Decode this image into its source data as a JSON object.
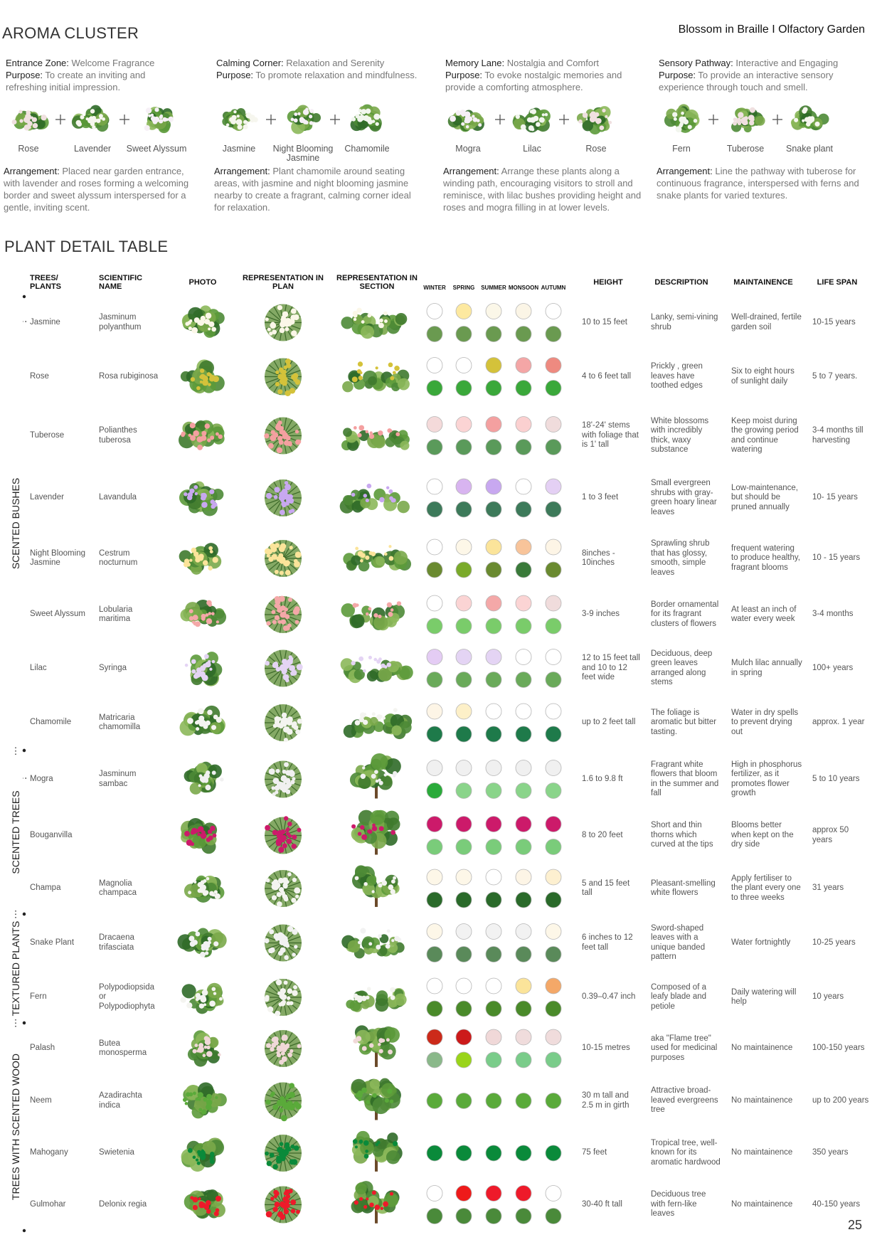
{
  "header": {
    "title": "AROMA CLUSTER",
    "project": "Blossom in Braille I Olfactory Garden"
  },
  "clusters": [
    {
      "zone": "Entrance Zone:",
      "theme": " Welcome Fragrance",
      "purpose_label": "Purpose:",
      "purpose": " To create an inviting and refreshing initial impression.",
      "plants": [
        "Rose",
        "Lavender",
        "Sweet Alyssum"
      ],
      "arrangement_label": "Arrangement:",
      "arrangement": " Placed near garden entrance, with lavender and roses forming a welcoming border and sweet alyssum interspersed for a gentle, inviting scent."
    },
    {
      "zone": "Calming Corner:",
      "theme": " Relaxation and Serenity",
      "purpose_label": "Purpose:",
      "purpose": " To promote relaxation and mindfulness.",
      "plants": [
        "Jasmine",
        "Night Blooming Jasmine",
        "Chamomile"
      ],
      "arrangement_label": "Arrangement:",
      "arrangement": " Plant chamomile around seating areas, with jasmine and night blooming jasmine nearby to create a fragrant, calming corner ideal for relaxation."
    },
    {
      "zone": "Memory Lane:",
      "theme": " Nostalgia and Comfort",
      "purpose_label": "Purpose:",
      "purpose": " To evoke nostalgic memories and provide a comforting atmosphere.",
      "plants": [
        "Mogra",
        "Lilac",
        "Rose"
      ],
      "arrangement_label": "Arrangement:",
      "arrangement": " Arrange these plants along a winding path, encouraging visitors to stroll and reminisce, with lilac bushes providing height and roses and mogra filling in at lower levels."
    },
    {
      "zone": "Sensory Pathway:",
      "theme": " Interactive and Engaging",
      "purpose_label": "Purpose:",
      "purpose": " To provide an interactive sensory experience through touch and smell.",
      "plants": [
        "Fern",
        "Tuberose",
        "Snake plant"
      ],
      "arrangement_label": "Arrangement:",
      "arrangement": " Line the pathway with tuberose for continuous fragrance, interspersed with ferns and snake plants for varied textures."
    }
  ],
  "table": {
    "title": "PLANT DETAIL TABLE",
    "headers": {
      "plant": "TREES/ PLANTS",
      "scientific": "SCIENTIFIC NAME",
      "photo": "PHOTO",
      "plan": "REPRESENTATION IN PLAN",
      "section": "REPRESENTATION IN SECTION",
      "height": "HEIGHT",
      "description": "DESCRIPTION",
      "maintenance": "MAINTAINENCE",
      "lifespan": "LIFE SPAN"
    },
    "seasons": [
      "WINTER",
      "SPRING",
      "SUMMER",
      "MONSOON",
      "AUTUMN"
    ],
    "groups": [
      {
        "label": "SCENTED BUSHES",
        "rows": [
          {
            "name": "Jasmine",
            "scientific": "Jasminum polyanthum",
            "height": "10 to 15 feet",
            "description": "Lanky, semi-vining shrub",
            "maintenance": "Well-drained, fertile garden soil",
            "lifespan": "10-15 years",
            "flower_colors": [
              "#ffffff",
              "#fde9a0",
              "#fbf7e8",
              "#fbf5e6",
              "#ffffff"
            ],
            "leaf_colors": [
              "#6a9a50",
              "#6a9a50",
              "#6a9a50",
              "#6a9a50",
              "#6a9a50"
            ]
          },
          {
            "name": "Rose",
            "scientific": "Rosa rubiginosa",
            "height": "4 to 6 feet tall",
            "description": "Prickly , green leaves have toothed edges",
            "maintenance": "Six to eight hours of sunlight daily",
            "lifespan": "5 to 7 years.",
            "flower_colors": [
              "#ffffff",
              "#ffffff",
              "#d4c23a",
              "#f4a6a6",
              "#ee8a80"
            ],
            "leaf_colors": [
              "#3aa83a",
              "#3aa83a",
              "#3aa83a",
              "#3aa83a",
              "#3aa83a"
            ]
          },
          {
            "name": "Tuberose",
            "scientific": "Polianthes tuberosa",
            "height": "18'-24' stems with foliage that is 1' tall",
            "description": "White blossoms with incredibly thick, waxy substance",
            "maintenance": "Keep moist during the growing period and continue watering",
            "lifespan": "3-4 months till harvesting",
            "flower_colors": [
              "#f4dada",
              "#fbd4d4",
              "#f4a0a0",
              "#fbd0d0",
              "#f0dcdc"
            ],
            "leaf_colors": [
              "#5a9a5a",
              "#5a9a5a",
              "#5a9a5a",
              "#5a9a5a",
              "#5a9a5a"
            ]
          },
          {
            "name": "Lavender",
            "scientific": "Lavandula",
            "height": "1 to 3 feet",
            "description": "Small evergreen shrubs with gray-green hoary linear leaves",
            "maintenance": "Low-maintenance, but should be pruned annually",
            "lifespan": "10- 15 years",
            "flower_colors": [
              "#ffffff",
              "#d8b4f0",
              "#c8a8f0",
              "#ffffff",
              "#e4d0f4"
            ],
            "leaf_colors": [
              "#3d7a5a",
              "#3d7a5a",
              "#3d7a5a",
              "#3d7a5a",
              "#3d7a5a"
            ]
          },
          {
            "name": "Night Blooming Jasmine",
            "scientific": "Cestrum nocturnum",
            "height": "8inches - 10inches",
            "description": "Sprawling shrub that has glossy, smooth, simple leaves",
            "maintenance": "frequent watering to produce healthy, fragrant blooms",
            "lifespan": "10 - 15 years",
            "flower_colors": [
              "#ffffff",
              "#fdf7e8",
              "#fbe49a",
              "#f8c49a",
              "#fdf5e6"
            ],
            "leaf_colors": [
              "#6a8a30",
              "#7aaa2a",
              "#6a8a30",
              "#3a7a3a",
              "#6a8a30"
            ]
          },
          {
            "name": "Sweet Alyssum",
            "scientific": "Lobularia maritima",
            "height": "3-9 inches",
            "description": "Border ornamental for its fragrant clusters of flowers",
            "maintenance": "At least an inch of water every week",
            "lifespan": "3-4 months",
            "flower_colors": [
              "#ffffff",
              "#fbd4d4",
              "#f4a8a8",
              "#fbd4d4",
              "#f0dcdc"
            ],
            "leaf_colors": [
              "#7acc6a",
              "#7acc6a",
              "#7acc6a",
              "#7acc6a",
              "#7acc6a"
            ]
          },
          {
            "name": "Lilac",
            "scientific": "Syringa",
            "height": "12 to 15 feet tall and 10 to 12 feet wide",
            "description": "Deciduous, deep green leaves arranged along stems",
            "maintenance": "Mulch lilac annually in spring",
            "lifespan": "100+ years",
            "flower_colors": [
              "#e4ccf4",
              "#e4d4f4",
              "#e4d4f4",
              "#ffffff",
              "#ffffff"
            ],
            "leaf_colors": [
              "#6aaa5a",
              "#6aaa5a",
              "#6aaa5a",
              "#6aaa5a",
              "#6aaa5a"
            ]
          },
          {
            "name": "Chamomile",
            "scientific": "Matricaria chamomilla",
            "height": "up to 2 feet tall",
            "description": "The foliage is aromatic but bitter tasting.",
            "maintenance": "Water in dry spells to prevent drying out",
            "lifespan": "approx. 1 year",
            "flower_colors": [
              "#fdf5e6",
              "#fdf0c8",
              "#ffffff",
              "#ffffff",
              "#ffffff"
            ],
            "leaf_colors": [
              "#1e7a4a",
              "#1e7a4a",
              "#1e7a4a",
              "#1e7a4a",
              "#1e7a4a"
            ]
          }
        ]
      },
      {
        "label": "SCENTED TREES",
        "rows": [
          {
            "name": "Mogra",
            "scientific": "Jasminum sambac",
            "height": "1.6 to 9.8 ft",
            "description": "Fragrant white flowers that bloom in the summer and fall",
            "maintenance": "High in phosphorus fertilizer, as it promotes flower growth",
            "lifespan": "5 to 10 years",
            "flower_colors": [
              "#f0f0f0",
              "#f0f0f0",
              "#f0f0f0",
              "#f0f0f0",
              "#f0f0f0"
            ],
            "leaf_colors": [
              "#2aaa3a",
              "#8ad48a",
              "#8ad48a",
              "#8ad48a",
              "#8ad48a"
            ]
          },
          {
            "name": "Bouganvilla",
            "height": "8 to 20 feet",
            "description": "Short and thin thorns which curved at the tips",
            "maintenance": "Blooms better when kept on the dry side",
            "lifespan": "approx 50 years",
            "flower_colors": [
              "#cc1a6a",
              "#cc1a6a",
              "#cc1a6a",
              "#cc1a6a",
              "#cc1a6a"
            ],
            "leaf_colors": [
              "#7acc7a",
              "#7acc7a",
              "#7acc7a",
              "#7acc7a",
              "#7acc7a"
            ]
          },
          {
            "name": "Champa",
            "scientific": "Magnolia champaca",
            "height": "5 and 15 feet tall",
            "description": "Pleasant-smelling white flowers",
            "maintenance": "Apply fertiliser to the plant every one to three weeks",
            "lifespan": "31 years",
            "flower_colors": [
              "#fdf7e8",
              "#fdf7e8",
              "#ffffff",
              "#fdf5e6",
              "#fdf0d0"
            ],
            "leaf_colors": [
              "#2a6a2a",
              "#2a6a2a",
              "#2a6a2a",
              "#2a6a2a",
              "#2a6a2a"
            ]
          }
        ]
      },
      {
        "label": "TEXTURED PLANTS",
        "rows": [
          {
            "name": "Snake Plant",
            "scientific": "Dracaena trifasciata",
            "height": "6 inches to 12 feet tall",
            "description": "Sword-shaped leaves with a unique banded pattern",
            "maintenance": "Water fortnightly",
            "lifespan": "10-25 years",
            "flower_colors": [
              "#fdf7e8",
              "#f2f2f2",
              "#f2f2f2",
              "#f2f2f2",
              "#fdf7e8"
            ],
            "leaf_colors": [
              "#5a8a5a",
              "#5a8a5a",
              "#5a8a5a",
              "#5a8a5a",
              "#5a8a5a"
            ]
          },
          {
            "name": "Fern",
            "scientific": "Polypodiopsida or Polypodiophyta",
            "height": "0.39–0.47 inch",
            "description": "Composed of a leafy blade and petiole",
            "maintenance": "Daily watering will help",
            "lifespan": "10 years",
            "flower_colors": [
              "#ffffff",
              "#ffffff",
              "#ffffff",
              "#fbe49a",
              "#f4a868"
            ],
            "leaf_colors": [
              "#4a8a2a",
              "#4a8a2a",
              "#4a8a2a",
              "#4a8a2a",
              "#4a8a2a"
            ]
          }
        ]
      },
      {
        "label": "TREES WITH SCENTED WOOD",
        "rows": [
          {
            "name": "Palash",
            "scientific": "Butea monosperma",
            "height": "10-15 metres",
            "description": "aka \"Flame tree\" used for medicinal purposes",
            "maintenance": "No maintainence",
            "lifespan": "100-150 years",
            "flower_colors": [
              "#cc2a1a",
              "#cc1a1a",
              "#f0d8d8",
              "#f0dcdc",
              "#f0dcdc"
            ],
            "leaf_colors": [
              "#8ab88a",
              "#9ad41a",
              "#7acc8a",
              "#7acc8a",
              "#7acc8a"
            ]
          },
          {
            "name": "Neem",
            "scientific": "Azadirachta indica",
            "height": "30 m tall and 2.5 m in girth",
            "description": "Attractive broad-leaved evergreens tree",
            "maintenance": "No maintainence",
            "lifespan": "up to 200 years",
            "leaf_colors": [
              "#5aaa3a",
              "#5aaa3a",
              "#5aaa3a",
              "#5aaa3a",
              "#5aaa3a"
            ]
          },
          {
            "name": "Mahogany",
            "scientific": "Swietenia",
            "height": "75 feet",
            "description": "Tropical tree, well-known for its aromatic hardwood",
            "maintenance": "No maintainence",
            "lifespan": "350 years",
            "leaf_colors": [
              "#0a8a3a",
              "#0a8a3a",
              "#0a8a3a",
              "#0a8a3a",
              "#0a8a3a"
            ]
          },
          {
            "name": "Gulmohar",
            "scientific": "Delonix regia",
            "height": "30-40 ft tall",
            "description": "Deciduous tree with fern-like leaves",
            "maintenance": "No maintainence",
            "lifespan": "40-150 years",
            "flower_colors": [
              "#ffffff",
              "#ee1a1a",
              "#ee1a2a",
              "#ee1a2a",
              "#ffffff"
            ],
            "leaf_colors": [
              "#4a8a3a",
              "#4a8a3a",
              "#4a8a3a",
              "#4a8a3a",
              "#4a8a3a"
            ]
          }
        ]
      }
    ]
  },
  "page_number": "25"
}
